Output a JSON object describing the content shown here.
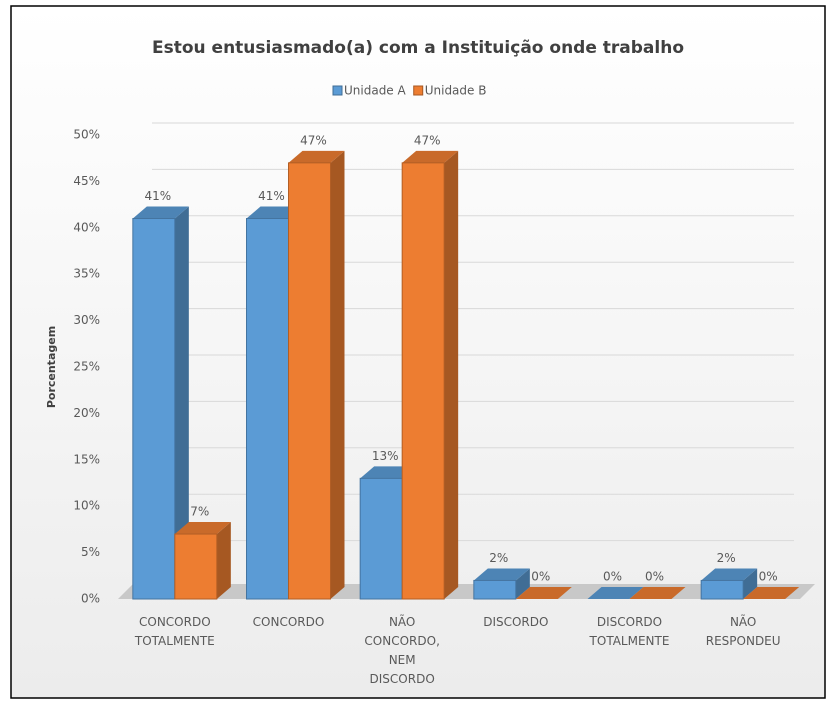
{
  "chart_data": {
    "type": "bar3d",
    "title": "Estou entusiasmado(a) com a Instituição onde trabalho",
    "y_label": "Porcentagem",
    "categories": [
      "CONCORDO TOTALMENTE",
      "CONCORDO",
      "NÃO CONCORDO, NEM DISCORDO",
      "DISCORDO",
      "DISCORDO TOTALMENTE",
      "NÃO RESPONDEU"
    ],
    "series": [
      {
        "name": "Unidade A",
        "color": "#5b9bd5",
        "values": [
          41,
          41,
          13,
          2,
          0,
          2
        ],
        "value_labels": [
          "41%",
          "41%",
          "13%",
          "2%",
          "0%",
          "2%"
        ]
      },
      {
        "name": "Unidade B",
        "color": "#ed7d31",
        "values": [
          7,
          47,
          47,
          0,
          0,
          0
        ],
        "value_labels": [
          "7%",
          "47%",
          "47%",
          "0%",
          "0%",
          "0%"
        ]
      }
    ],
    "ylim": [
      0,
      50
    ],
    "yticks": [
      {
        "value": 0,
        "label": "0%"
      },
      {
        "value": 5,
        "label": "5%"
      },
      {
        "value": 10,
        "label": "10%"
      },
      {
        "value": 15,
        "label": "15%"
      },
      {
        "value": 20,
        "label": "20%"
      },
      {
        "value": 25,
        "label": "25%"
      },
      {
        "value": 30,
        "label": "30%"
      },
      {
        "value": 35,
        "label": "35%"
      },
      {
        "value": 40,
        "label": "40%"
      },
      {
        "value": 45,
        "label": "45%"
      },
      {
        "value": 50,
        "label": "50%"
      }
    ],
    "grid": true,
    "legend": "top"
  }
}
